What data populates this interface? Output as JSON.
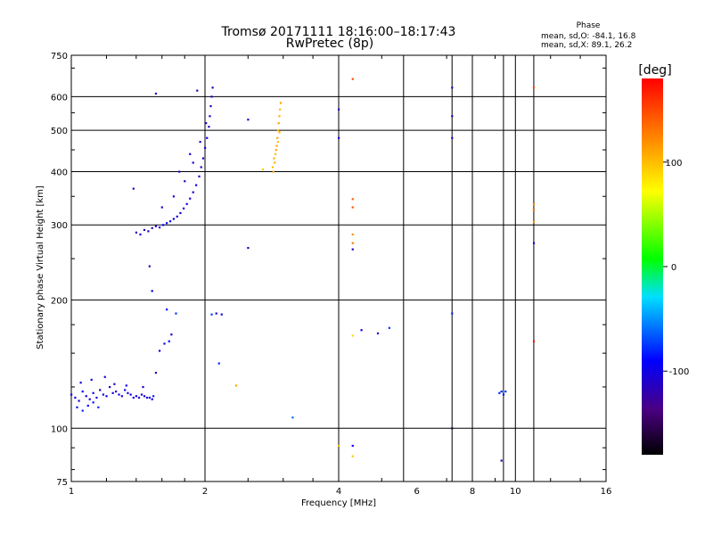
{
  "title_line1": "Tromsø 20171111 18:16:00–18:17:43",
  "title_line2": "RwPretec (8p)",
  "phase_header": "Phase",
  "phase_stat_o": "mean, sd,O: -84.1, 16.8",
  "phase_stat_x": "mean, sd,X: 89.1, 26.2",
  "chart_data": {
    "type": "scatter",
    "xlabel": "Frequency [MHz]",
    "ylabel": "Stationary phase Virtual Height [km]",
    "x_scale": "log",
    "y_scale": "log",
    "xlim": [
      1,
      16
    ],
    "ylim": [
      75,
      750
    ],
    "x_ticks": [
      "1",
      "2",
      "4",
      "6",
      "8",
      "10",
      "16"
    ],
    "x_tick_values": [
      1,
      2,
      4,
      6,
      8,
      10,
      16
    ],
    "y_ticks": [
      "75",
      "100",
      "200",
      "300",
      "400",
      "500",
      "600",
      "750"
    ],
    "y_tick_values": [
      75,
      100,
      200,
      300,
      400,
      500,
      600,
      750
    ],
    "x_gridlines": [
      2,
      4,
      5.6,
      7.2,
      8,
      9.4,
      10,
      11
    ],
    "y_gridlines": [
      100,
      200,
      300,
      400,
      500,
      600
    ],
    "grid": true,
    "colorbar": {
      "label": "[deg]",
      "range": [
        -180,
        180
      ],
      "ticks": [
        "100",
        "0",
        "-100"
      ],
      "tick_values": [
        100,
        0,
        -100
      ]
    },
    "series": [
      {
        "points": [
          [
            1.0,
            120,
            -100
          ],
          [
            1.02,
            118,
            -95
          ],
          [
            1.04,
            116,
            -110
          ],
          [
            1.06,
            122,
            -90
          ],
          [
            1.08,
            119,
            -100
          ],
          [
            1.1,
            117,
            -105
          ],
          [
            1.12,
            121,
            -95
          ],
          [
            1.14,
            118,
            -100
          ],
          [
            1.16,
            123,
            -110
          ],
          [
            1.18,
            120,
            -100
          ],
          [
            1.2,
            119,
            -95
          ],
          [
            1.22,
            125,
            -105
          ],
          [
            1.24,
            121,
            -100
          ],
          [
            1.26,
            122,
            -110
          ],
          [
            1.28,
            120,
            -100
          ],
          [
            1.3,
            119,
            -105
          ],
          [
            1.32,
            123,
            -100
          ],
          [
            1.34,
            121,
            -110
          ],
          [
            1.36,
            120,
            -100
          ],
          [
            1.38,
            118,
            -105
          ],
          [
            1.4,
            119,
            -100
          ],
          [
            1.42,
            118,
            -110
          ],
          [
            1.44,
            120,
            -100
          ],
          [
            1.46,
            119,
            -105
          ],
          [
            1.48,
            118,
            -100
          ],
          [
            1.5,
            118,
            -105
          ],
          [
            1.52,
            117,
            -100
          ],
          [
            1.03,
            112,
            -85
          ],
          [
            1.06,
            110,
            -80
          ],
          [
            1.09,
            113,
            -90
          ],
          [
            1.12,
            115,
            -85
          ],
          [
            1.15,
            112,
            -80
          ],
          [
            1.05,
            128,
            -100
          ],
          [
            1.11,
            130,
            -105
          ],
          [
            1.19,
            132,
            -100
          ],
          [
            1.25,
            127,
            -110
          ],
          [
            1.33,
            126,
            -100
          ],
          [
            1.45,
            125,
            -105
          ],
          [
            1.53,
            119,
            -80
          ]
        ]
      },
      {
        "points": [
          [
            1.4,
            288,
            -115
          ],
          [
            1.43,
            285,
            -110
          ],
          [
            1.46,
            292,
            -115
          ],
          [
            1.49,
            290,
            -110
          ],
          [
            1.52,
            295,
            -115
          ],
          [
            1.55,
            298,
            -110
          ],
          [
            1.58,
            296,
            -100
          ],
          [
            1.61,
            300,
            -90
          ],
          [
            1.64,
            303,
            -95
          ],
          [
            1.67,
            306,
            -100
          ],
          [
            1.7,
            310,
            -95
          ],
          [
            1.73,
            314,
            -100
          ],
          [
            1.76,
            320,
            -105
          ],
          [
            1.79,
            328,
            -100
          ],
          [
            1.82,
            336,
            -95
          ],
          [
            1.85,
            346,
            -100
          ],
          [
            1.88,
            358,
            -105
          ],
          [
            1.91,
            372,
            -95
          ],
          [
            1.94,
            390,
            -100
          ],
          [
            1.96,
            410,
            -105
          ],
          [
            1.98,
            430,
            -100
          ],
          [
            2.0,
            455,
            -110
          ],
          [
            2.02,
            480,
            -100
          ],
          [
            2.04,
            510,
            -105
          ],
          [
            2.05,
            540,
            -110
          ],
          [
            2.06,
            570,
            -115
          ],
          [
            2.07,
            600,
            -110
          ],
          [
            2.08,
            630,
            -115
          ],
          [
            1.6,
            330,
            -115
          ],
          [
            1.7,
            350,
            -110
          ],
          [
            1.8,
            380,
            -115
          ],
          [
            1.88,
            420,
            -110
          ],
          [
            1.95,
            470,
            -115
          ],
          [
            2.01,
            520,
            -110
          ],
          [
            1.75,
            400,
            -105
          ],
          [
            1.85,
            440,
            -110
          ],
          [
            1.38,
            365,
            -115
          ],
          [
            1.92,
            620,
            -115
          ],
          [
            1.5,
            240,
            -115
          ],
          [
            1.52,
            210,
            -95
          ]
        ]
      },
      {
        "points": [
          [
            2.85,
            400,
            110
          ],
          [
            2.87,
            420,
            105
          ],
          [
            2.88,
            440,
            100
          ],
          [
            2.9,
            460,
            105
          ],
          [
            2.91,
            480,
            110
          ],
          [
            2.92,
            500,
            105
          ],
          [
            2.93,
            520,
            110
          ],
          [
            2.94,
            540,
            105
          ],
          [
            2.95,
            560,
            100
          ],
          [
            2.96,
            580,
            110
          ],
          [
            2.84,
            410,
            100
          ],
          [
            2.86,
            430,
            105
          ],
          [
            2.89,
            450,
            110
          ],
          [
            2.92,
            470,
            100
          ],
          [
            2.94,
            495,
            105
          ],
          [
            2.7,
            405,
            95
          ]
        ]
      },
      {
        "points": [
          [
            1.64,
            190,
            -90
          ],
          [
            1.72,
            186,
            -75
          ],
          [
            1.68,
            166,
            -110
          ],
          [
            1.62,
            158,
            -100
          ],
          [
            1.58,
            152,
            -95
          ],
          [
            1.66,
            160,
            -85
          ],
          [
            1.55,
            135,
            -110
          ],
          [
            2.07,
            185,
            -75
          ],
          [
            2.12,
            186,
            -100
          ],
          [
            2.18,
            185,
            -105
          ],
          [
            2.15,
            142,
            -80
          ],
          [
            2.35,
            126,
            110
          ],
          [
            3.15,
            106,
            -60
          ]
        ]
      },
      {
        "points": [
          [
            4.0,
            560,
            -110
          ],
          [
            4.0,
            480,
            -105
          ],
          [
            4.3,
            660,
            150
          ],
          [
            4.3,
            345,
            140
          ],
          [
            4.3,
            330,
            145
          ],
          [
            4.3,
            285,
            120
          ],
          [
            4.3,
            272,
            130
          ],
          [
            4.3,
            263,
            -110
          ],
          [
            4.3,
            165,
            90
          ],
          [
            4.0,
            91,
            100
          ],
          [
            4.3,
            91,
            -100
          ],
          [
            4.3,
            86,
            95
          ],
          [
            4.9,
            167,
            -110
          ],
          [
            5.2,
            172,
            -75
          ],
          [
            4.5,
            170,
            -100
          ],
          [
            2.5,
            530,
            -110
          ],
          [
            2.5,
            265,
            -110
          ],
          [
            1.55,
            610,
            -110
          ]
        ]
      },
      {
        "points": [
          [
            7.2,
            630,
            -115
          ],
          [
            7.2,
            540,
            -110
          ],
          [
            7.2,
            480,
            -105
          ],
          [
            7.2,
            186,
            -80
          ],
          [
            7.2,
            100,
            -160
          ],
          [
            9.3,
            122,
            -80
          ],
          [
            9.4,
            120,
            -85
          ],
          [
            9.2,
            121,
            -80
          ],
          [
            9.5,
            122,
            -75
          ],
          [
            9.3,
            84,
            -115
          ],
          [
            11.0,
            630,
            150
          ],
          [
            11.0,
            335,
            120
          ],
          [
            11.0,
            325,
            130
          ],
          [
            11.0,
            305,
            120
          ],
          [
            11.0,
            272,
            -110
          ],
          [
            11.0,
            160,
            170
          ]
        ]
      }
    ]
  }
}
